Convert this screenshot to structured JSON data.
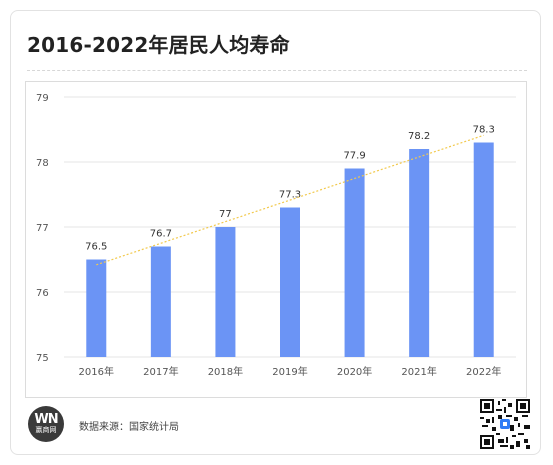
{
  "title": "2016-2022年居民人均寿命",
  "source_text": "数据来源：国家统计局",
  "logo": {
    "mark": "WN",
    "sub": "赢商网"
  },
  "colors": {
    "bar": "#6b94f5",
    "trend": "#f2c94c",
    "grid": "#e4e4e4",
    "axis_text": "#555555"
  },
  "icons": {
    "qr": "qr-code-icon"
  },
  "chart_data": {
    "type": "bar",
    "categories": [
      "2016年",
      "2017年",
      "2018年",
      "2019年",
      "2020年",
      "2021年",
      "2022年"
    ],
    "values": [
      76.5,
      76.7,
      77,
      77.3,
      77.9,
      78.2,
      78.3
    ],
    "value_labels": [
      "76.5",
      "76.7",
      "77",
      "77.3",
      "77.9",
      "78.2",
      "78.3"
    ],
    "ylim": [
      75,
      79
    ],
    "yticks": [
      75,
      76,
      77,
      78,
      79
    ],
    "grid": true,
    "trendline": {
      "type": "linear",
      "style": "dotted"
    },
    "title": "",
    "xlabel": "",
    "ylabel": ""
  }
}
